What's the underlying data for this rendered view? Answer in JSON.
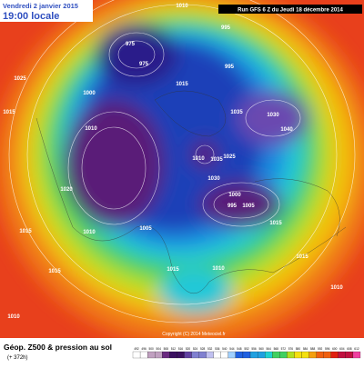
{
  "header": {
    "date": "Vendredi 2 janvier 2015",
    "time": "19:00 locale",
    "run": "Run GFS 6 Z du Jeudi 18 décembre 2014"
  },
  "footer": {
    "title": "Géop. Z500 & pression au sol",
    "lead": "(+ 372h)",
    "copyright": "Copyright (C) 2014 Meteociel.fr"
  },
  "isobar_labels": [
    "1010",
    "975",
    "995",
    "975",
    "995",
    "1025",
    "1015",
    "1000",
    "1015",
    "1010",
    "1035",
    "1030",
    "1040",
    "1010",
    "1035",
    "1025",
    "1030",
    "1020",
    "1000",
    "995",
    "1005",
    "1015",
    "1010",
    "1015",
    "1010",
    "1005",
    "1015",
    "1010",
    "1015",
    "1010",
    "1015"
  ],
  "colorbar": {
    "labels": [
      492,
      496,
      500,
      504,
      508,
      512,
      516,
      520,
      524,
      528,
      532,
      536,
      540,
      544,
      548,
      552,
      556,
      560,
      564,
      568,
      572,
      576,
      580,
      584,
      588,
      592,
      596,
      600,
      604,
      608,
      612
    ]
  }
}
